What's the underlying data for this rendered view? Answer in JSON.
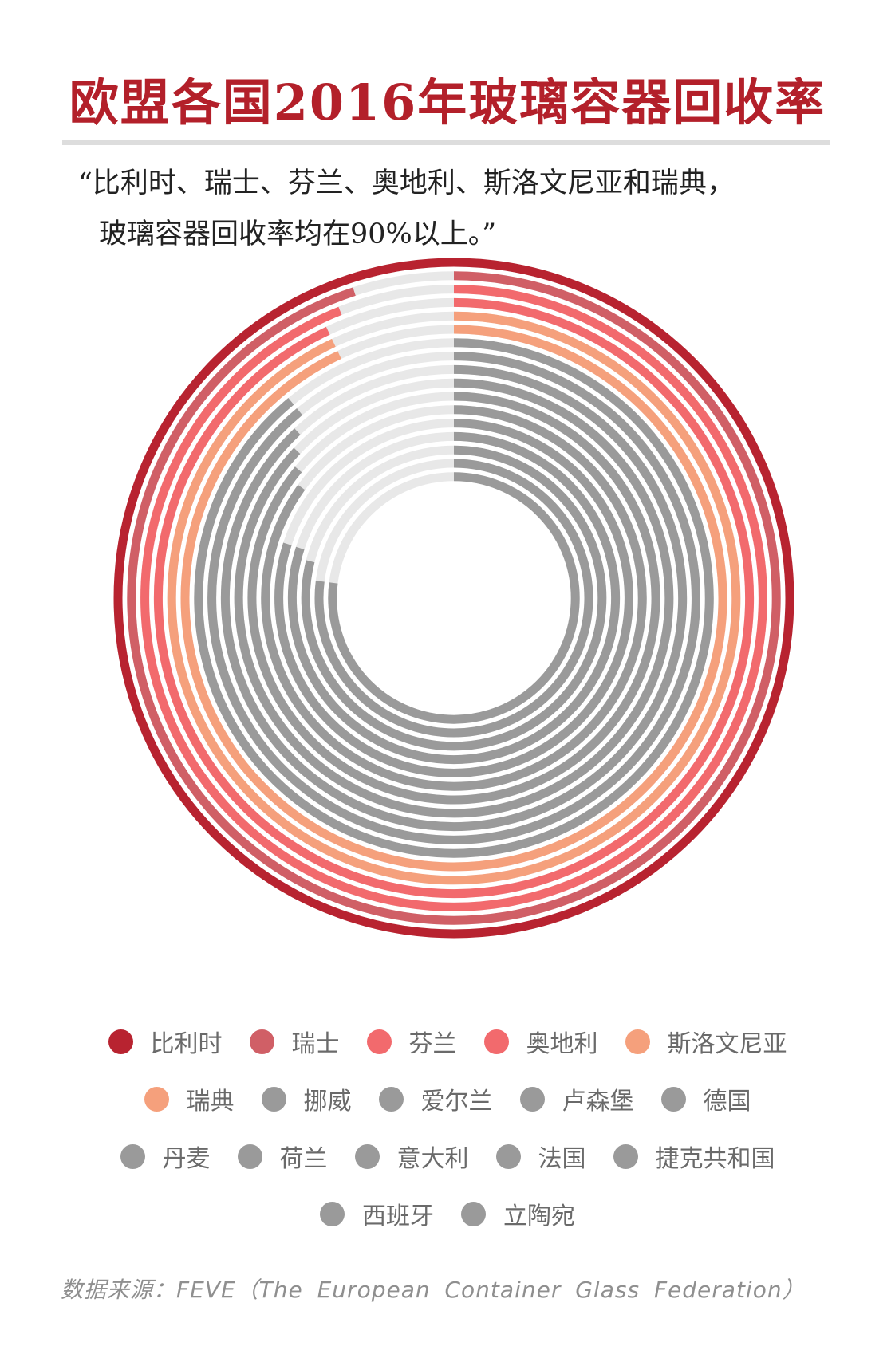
{
  "title": "欧盟各国2016年玻璃容器回收率",
  "quote": {
    "line1": "“比利时、瑞士、芬兰、奥地利、斯洛文尼亚和瑞典，",
    "line2": "玻璃容器回收率均在90%以上。”"
  },
  "source": "数据来源：FEVE（The European Container Glass Federation）",
  "chart_data": {
    "type": "radial-bar",
    "unit": "%",
    "max": 100,
    "track_color": "#e8e8e8",
    "series": [
      {
        "name": "比利时",
        "value": 100,
        "color": "#b82330"
      },
      {
        "name": "瑞士",
        "value": 95,
        "color": "#d05f66"
      },
      {
        "name": "芬兰",
        "value": 94,
        "color": "#f26a6d"
      },
      {
        "name": "奥地利",
        "value": 93,
        "color": "#f26a6d"
      },
      {
        "name": "斯洛文尼亚",
        "value": 93,
        "color": "#f5a07c"
      },
      {
        "name": "瑞典",
        "value": 93,
        "color": "#f5a07c"
      },
      {
        "name": "挪威",
        "value": 89,
        "color": "#9a9a9a"
      },
      {
        "name": "爱尔兰",
        "value": 89,
        "color": "#9a9a9a"
      },
      {
        "name": "卢森堡",
        "value": 88,
        "color": "#9a9a9a"
      },
      {
        "name": "德国",
        "value": 87,
        "color": "#9a9a9a"
      },
      {
        "name": "丹麦",
        "value": 86,
        "color": "#9a9a9a"
      },
      {
        "name": "荷兰",
        "value": 85,
        "color": "#9a9a9a"
      },
      {
        "name": "意大利",
        "value": 80,
        "color": "#9a9a9a"
      },
      {
        "name": "法国",
        "value": 80,
        "color": "#9a9a9a"
      },
      {
        "name": "捷克共和国",
        "value": 79,
        "color": "#9a9a9a"
      },
      {
        "name": "西班牙",
        "value": 77,
        "color": "#9a9a9a"
      },
      {
        "name": "立陶宛",
        "value": 77,
        "color": "#9a9a9a"
      }
    ],
    "legend_rows": [
      [
        "比利时",
        "瑞士",
        "芬兰",
        "奥地利",
        "斯洛文尼亚"
      ],
      [
        "瑞典",
        "挪威",
        "爱尔兰",
        "卢森堡",
        "德国"
      ],
      [
        "丹麦",
        "荷兰",
        "意大利",
        "法国",
        "捷克共和国"
      ],
      [
        "西班牙",
        "立陶宛"
      ]
    ]
  }
}
